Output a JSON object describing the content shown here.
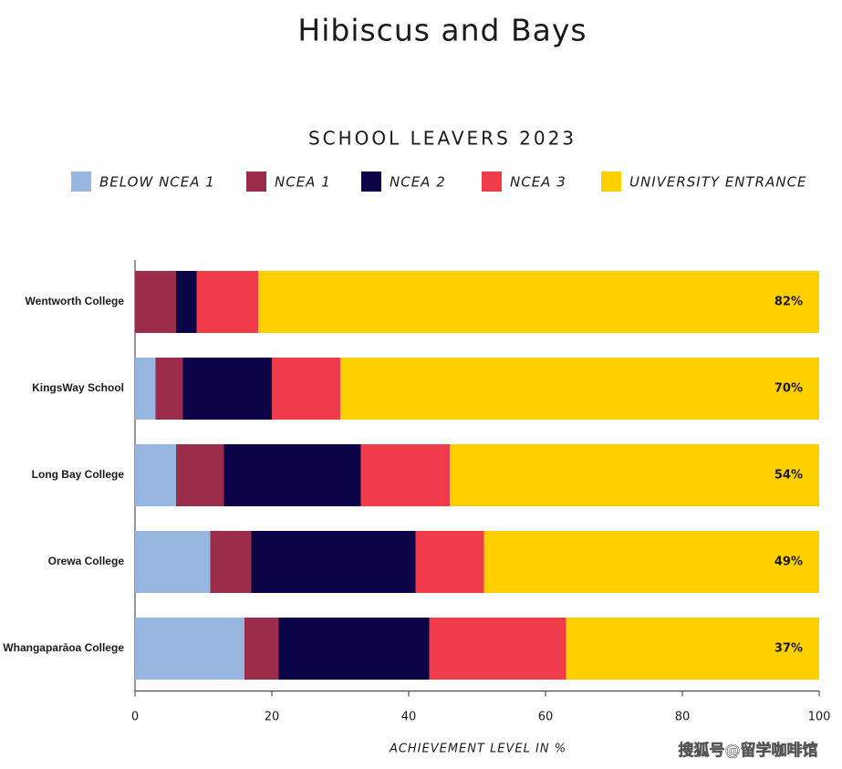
{
  "chart_data": {
    "type": "stacked-barh",
    "title": "Hibiscus and Bays",
    "subtitle": "SCHOOL LEAVERS 2023",
    "xlabel": "ACHIEVEMENT LEVEL IN %",
    "watermark": "搜狐号@留学咖啡馆",
    "categories": [
      "Wentworth College",
      "KingsWay School",
      "Long Bay College",
      "Orewa College",
      "Whangaparāoa College"
    ],
    "series": [
      {
        "name": "BELOW NCEA 1",
        "color": "#97b6e0",
        "values": [
          0,
          3,
          6,
          11,
          16
        ]
      },
      {
        "name": "NCEA 1",
        "color": "#9b2d4a",
        "values": [
          6,
          4,
          7,
          6,
          5
        ]
      },
      {
        "name": "NCEA 2",
        "color": "#0b0447",
        "values": [
          3,
          13,
          20,
          24,
          22
        ]
      },
      {
        "name": "NCEA 3",
        "color": "#ef3b4a",
        "values": [
          9,
          10,
          13,
          10,
          20
        ]
      },
      {
        "name": "UNIVERSITY ENTRANCE",
        "color": "#ffd000",
        "values": [
          82,
          70,
          54,
          49,
          37
        ],
        "value_labels": [
          "82%",
          "70%",
          "54%",
          "49%",
          "37%"
        ]
      }
    ],
    "xlim": [
      0,
      100
    ],
    "xticks": [
      0,
      20,
      40,
      60,
      80,
      100
    ],
    "legend": "top"
  }
}
